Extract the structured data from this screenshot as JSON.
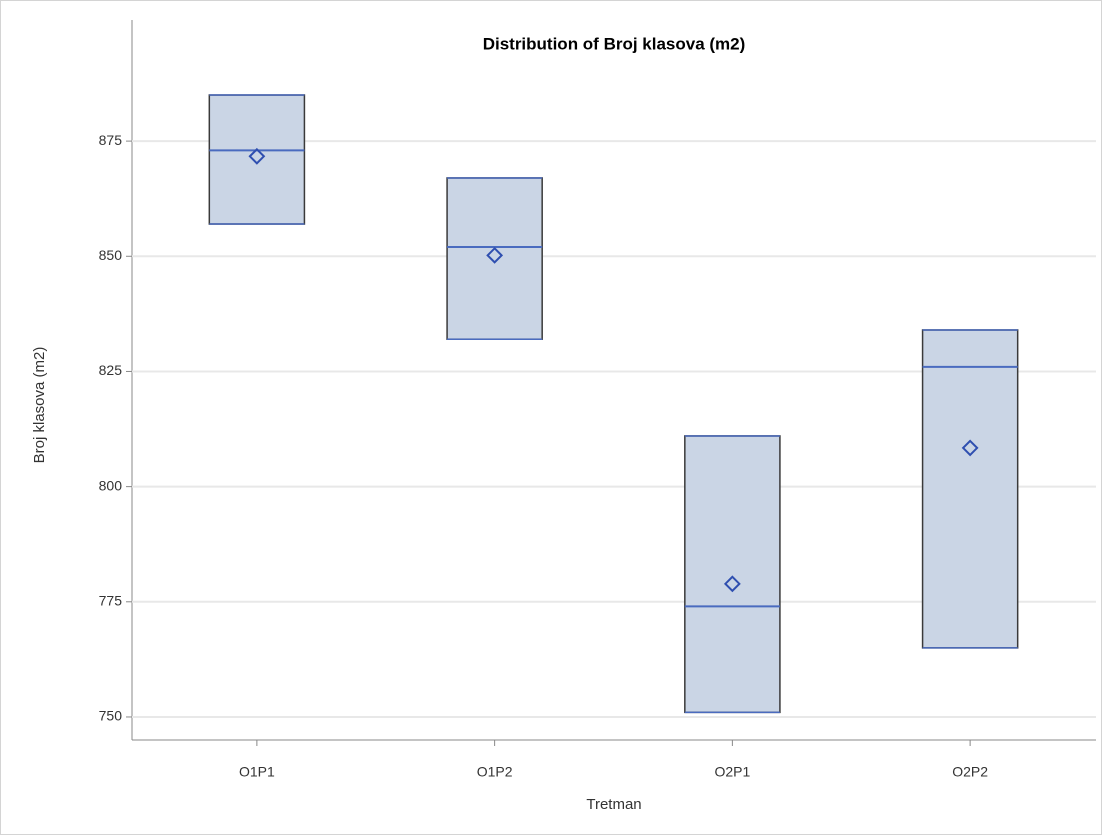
{
  "chart_data": {
    "type": "box",
    "title": "Distribution of Broj klasova (m2)",
    "x_label": "Tretman",
    "y_label": "Broj klasova (m2)",
    "categories": [
      "O1P1",
      "O1P2",
      "O2P1",
      "O2P2"
    ],
    "whisker_low": [
      857,
      832,
      751,
      765
    ],
    "q1": [
      857,
      832,
      751,
      765
    ],
    "median": [
      873,
      852,
      774,
      826
    ],
    "q3": [
      885,
      867,
      811,
      834
    ],
    "whisker_high": [
      885,
      867,
      811,
      834
    ],
    "mean": [
      871.7,
      850.2,
      778.9,
      808.4
    ],
    "box_color": "#cad5e5",
    "line_color": "#4a6bbf",
    "ylim": [
      745,
      890
    ],
    "yticks": [
      750,
      775,
      800,
      825,
      850,
      875
    ],
    "grid": true
  }
}
